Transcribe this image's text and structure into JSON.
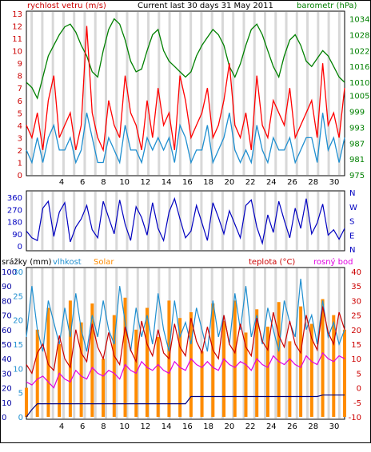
{
  "chart_data": [
    {
      "type": "line",
      "title": "Current last 30 days 31 May 2011",
      "left_axis_label": "rychlost vetru (m/s)",
      "right_axis_label": "barometr (hPa)",
      "y_left_ticks": [
        "0",
        "1",
        "2",
        "3",
        "4",
        "5",
        "6",
        "7",
        "8",
        "9",
        "10",
        "11",
        "12",
        "13"
      ],
      "y_right_ticks": [
        "975",
        "981",
        "987",
        "993",
        "999",
        "1005",
        "1010",
        "1016",
        "1022",
        "1028",
        "1034"
      ],
      "x_ticks": [
        "4",
        "6",
        "8",
        "10",
        "12",
        "14",
        "16",
        "18",
        "20",
        "22",
        "24",
        "26",
        "28",
        "30"
      ],
      "series": [
        {
          "name": "barometr",
          "color": "#008000",
          "axis": "right",
          "values": [
            1010,
            1008,
            1004,
            1012,
            1020,
            1024,
            1028,
            1031,
            1032,
            1029,
            1024,
            1020,
            1014,
            1012,
            1022,
            1030,
            1034,
            1032,
            1026,
            1018,
            1014,
            1015,
            1022,
            1028,
            1030,
            1022,
            1018,
            1016,
            1014,
            1012,
            1014,
            1020,
            1024,
            1027,
            1030,
            1028,
            1024,
            1016,
            1012,
            1017,
            1024,
            1030,
            1032,
            1028,
            1022,
            1016,
            1012,
            1020,
            1026,
            1028,
            1024,
            1018,
            1016,
            1019,
            1022,
            1020,
            1016,
            1012,
            1010
          ]
        },
        {
          "name": "naraz vetru",
          "color": "#ff0000",
          "axis": "left",
          "values": [
            4,
            3,
            5,
            2,
            6,
            8,
            3,
            4,
            5,
            2,
            4,
            12,
            5,
            3,
            2,
            6,
            4,
            3,
            8,
            5,
            4,
            2,
            6,
            3,
            7,
            4,
            5,
            2,
            8,
            6,
            3,
            4,
            5,
            7,
            3,
            4,
            6,
            9,
            4,
            3,
            5,
            2,
            8,
            4,
            3,
            6,
            5,
            4,
            7,
            3,
            4,
            5,
            6,
            3,
            9,
            4,
            5,
            3,
            7
          ]
        },
        {
          "name": "rychlost vetru",
          "color": "#1f8fd0",
          "axis": "left",
          "values": [
            2,
            1,
            3,
            1,
            3,
            4,
            2,
            2,
            3,
            1,
            2,
            5,
            3,
            1,
            1,
            3,
            2,
            1,
            4,
            2,
            2,
            1,
            3,
            2,
            3,
            2,
            3,
            1,
            4,
            3,
            1,
            2,
            2,
            4,
            1,
            2,
            3,
            5,
            2,
            1,
            2,
            1,
            4,
            2,
            1,
            3,
            2,
            2,
            3,
            1,
            2,
            3,
            3,
            1,
            5,
            2,
            3,
            1,
            3
          ]
        }
      ],
      "ylim_left": [
        0,
        13
      ],
      "ylim_right": [
        975,
        1036
      ]
    },
    {
      "type": "line",
      "title": "",
      "y_left_ticks": [
        "360",
        "270",
        "180",
        "90",
        "0"
      ],
      "y_right_ticks": [
        "N",
        "W",
        "S",
        "E",
        "N"
      ],
      "series": [
        {
          "name": "smer vetru",
          "color": "#0000c0",
          "values": [
            110,
            60,
            40,
            280,
            330,
            70,
            250,
            320,
            30,
            140,
            200,
            300,
            120,
            60,
            330,
            210,
            90,
            340,
            160,
            40,
            290,
            210,
            80,
            320,
            130,
            40,
            250,
            350,
            200,
            60,
            110,
            300,
            170,
            40,
            320,
            210,
            90,
            260,
            160,
            60,
            300,
            340,
            140,
            20,
            230,
            100,
            330,
            190,
            60,
            280,
            130,
            350,
            90,
            170,
            310,
            80,
            120,
            50,
            130
          ]
        }
      ],
      "ylim": [
        0,
        360
      ]
    },
    {
      "type": "line",
      "left_axis_label": "srážky (mm)",
      "left_axis_label_2": "vlhkost",
      "solar_label": "Solar",
      "temp_label": "teplota (°C)",
      "dew_label": "rosný bod",
      "y_left_ticks_rain": [
        "0",
        "10",
        "20",
        "30",
        "40",
        "50",
        "60",
        "70",
        "80",
        "90",
        "100"
      ],
      "y_left_ticks_hum": [
        "0",
        "5",
        "10",
        "15",
        "20",
        "25",
        "30"
      ],
      "y_right_ticks": [
        "40",
        "35",
        "30",
        "25",
        "20",
        "15",
        "10",
        "5",
        "0",
        "-5",
        "-10"
      ],
      "x_ticks": [
        "4",
        "6",
        "8",
        "10",
        "12",
        "14",
        "16",
        "18",
        "20",
        "22",
        "24",
        "26",
        "28",
        "30"
      ],
      "series": [
        {
          "name": "vlhkost",
          "color": "#1f8fd0",
          "values": [
            55,
            90,
            60,
            45,
            80,
            65,
            50,
            75,
            55,
            85,
            60,
            45,
            70,
            55,
            80,
            60,
            50,
            90,
            65,
            45,
            75,
            55,
            70,
            50,
            85,
            60,
            45,
            80,
            55,
            65,
            50,
            75,
            60,
            45,
            80,
            55,
            70,
            50,
            85,
            60,
            90,
            55,
            70,
            50,
            75,
            60,
            45,
            80,
            65,
            55,
            95,
            60,
            70,
            50,
            80,
            55,
            65,
            50,
            60
          ]
        },
        {
          "name": "teplota",
          "color": "#cc0000",
          "values": [
            8,
            5,
            12,
            15,
            8,
            6,
            18,
            10,
            7,
            20,
            12,
            9,
            22,
            14,
            10,
            19,
            11,
            8,
            21,
            13,
            9,
            23,
            15,
            11,
            20,
            12,
            10,
            22,
            14,
            11,
            24,
            16,
            12,
            21,
            13,
            10,
            25,
            15,
            12,
            22,
            14,
            11,
            24,
            16,
            13,
            26,
            18,
            14,
            23,
            15,
            12,
            25,
            17,
            13,
            28,
            19,
            15,
            26,
            20
          ]
        },
        {
          "name": "rosný bod",
          "color": "#e000e0",
          "values": [
            2,
            1,
            3,
            4,
            2,
            0,
            5,
            3,
            2,
            6,
            4,
            3,
            7,
            5,
            4,
            6,
            5,
            3,
            8,
            6,
            5,
            9,
            7,
            6,
            8,
            6,
            5,
            9,
            7,
            6,
            10,
            8,
            7,
            9,
            7,
            6,
            10,
            8,
            7,
            9,
            8,
            6,
            10,
            8,
            7,
            11,
            9,
            8,
            10,
            8,
            7,
            11,
            9,
            8,
            12,
            10,
            9,
            11,
            10
          ]
        },
        {
          "name": "Solar",
          "color": "#ff8c00",
          "values": [
            20,
            0,
            60,
            0,
            75,
            0,
            50,
            0,
            80,
            0,
            65,
            0,
            78,
            0,
            40,
            0,
            70,
            0,
            82,
            0,
            60,
            0,
            75,
            0,
            55,
            0,
            80,
            0,
            68,
            0,
            72,
            0,
            45,
            0,
            78,
            0,
            66,
            0,
            80,
            0,
            58,
            0,
            74,
            0,
            62,
            0,
            79,
            0,
            52,
            0,
            76,
            0,
            64,
            0,
            81,
            0,
            70,
            0,
            60
          ]
        },
        {
          "name": "srážky",
          "color": "#000080",
          "values": [
            0,
            5,
            9,
            9,
            9,
            9,
            9,
            9,
            9,
            9,
            9,
            9,
            9,
            9,
            9,
            9,
            9,
            9,
            9,
            9,
            9,
            9,
            9,
            9,
            9,
            9,
            9,
            9,
            9,
            9,
            14,
            14,
            14,
            14,
            14,
            14,
            14,
            14,
            14,
            14,
            14,
            14,
            14,
            14,
            14,
            14,
            14,
            14,
            14,
            14,
            14,
            14,
            14,
            14,
            15,
            15,
            15,
            15,
            15
          ]
        }
      ],
      "ylim_left": [
        0,
        100
      ],
      "ylim_right": [
        -10,
        40
      ]
    }
  ]
}
